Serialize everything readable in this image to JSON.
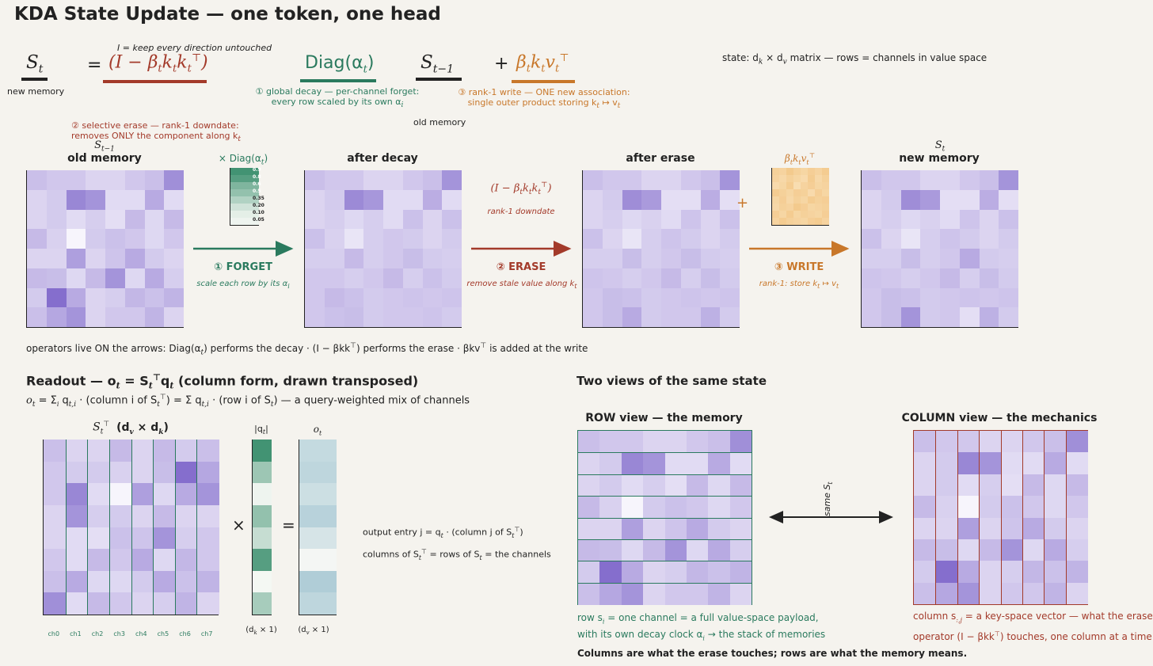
{
  "title": "KDA State Update — one token, one head",
  "equation": {
    "st": "S",
    "st_sub": "t",
    "st_note": "new memory",
    "equals": "=",
    "erase_term": "(I − β",
    "erase_term_tail": "k",
    "identity_note": "I = keep every direction untouched",
    "erase_note_1": "② selective erase — rank-1 downdate:",
    "erase_note_2": "removes ONLY the component along k",
    "diag_term": "Diag(α",
    "diag_note_1": "① global decay — per-channel forget:",
    "diag_note_2": "every row scaled by its own α",
    "sprev": "S",
    "sprev_sub": "t−1",
    "sprev_note": "old memory",
    "plus": "+",
    "write_term": "β",
    "write_note_1": "③ rank-1 write — ONE new association:",
    "write_note_2": "single outer product storing k",
    "state_note": "state: d",
    "state_note_tail": " matrix — rows = channels in value space"
  },
  "panels": {
    "old": {
      "top": "S",
      "top_sub": "t−1",
      "label": "old memory"
    },
    "decay": {
      "label": "after decay"
    },
    "erase": {
      "label": "after erase"
    },
    "new": {
      "top": "S",
      "top_sub": "t",
      "label": "new memory"
    }
  },
  "diag_box": {
    "label": "× Diag(α",
    "values": [
      "0.9",
      "0.8",
      "0.6",
      "0.5",
      "0.35",
      "0.20",
      "0.10",
      "0.05"
    ]
  },
  "arrows": {
    "forget": {
      "label": "① FORGET",
      "note": "scale each row by its α"
    },
    "erase": {
      "formula": "(I − β",
      "formula_sub": "rank-1 downdate",
      "label": "② ERASE",
      "note": "remove stale value along k"
    },
    "write": {
      "label": "③ WRITE",
      "note": "rank-1: store k"
    }
  },
  "write_box_label": "β",
  "plus_sign": "+",
  "operators_line_1": "operators live ON the arrows:  Diag(α",
  "operators_line_2": ") performs the decay · (I − βkk",
  "operators_line_3": ") performs the erase · βkv",
  "operators_line_4": "  is added at the write",
  "readout": {
    "title_1": "Readout — o",
    "title_2": " (column form, drawn transposed)",
    "formula": "= Σ q",
    "formula_tail": " · (row i of S",
    "formula_end": ")  — a query-weighted mix of channels",
    "st_label": "(d",
    "st_label_tail": ")",
    "q_label": "|q",
    "o_label": "o",
    "times": "×",
    "eq": "=",
    "q_dims": "(d",
    "o_dims": "(d",
    "ch_labels": [
      "ch0",
      "ch1",
      "ch2",
      "ch3",
      "ch4",
      "ch5",
      "ch6",
      "ch7"
    ],
    "note_1": "output entry j = q",
    "note_1_tail": " ·  (column j of S",
    "note_2": "columns of S",
    "note_2_tail": " = rows of S",
    "note_2_end": " = the channels"
  },
  "views": {
    "title": "Two views of the same state",
    "row_title": "ROW view — the memory",
    "col_title": "COLUMN view — the mechanics",
    "same": "same S",
    "row_note_1": "row s",
    "row_note_1_tail": " = one channel = a full value-space payload,",
    "row_note_2": "with its own decay clock α",
    "row_note_2_tail": "  →  the stack of memories",
    "col_note_1": "column s",
    "col_note_1_tail": " = a key-space vector — what the erase",
    "col_note_2": "operator (I − βkk",
    "col_note_2_tail": ") touches, one column at a time",
    "footer": "Columns are what the erase touches;  rows are what the memory means."
  },
  "heat": {
    "old": [
      [
        0.35,
        0.3,
        0.3,
        0.22,
        0.22,
        0.3,
        0.35,
        0.65
      ],
      [
        0.22,
        0.28,
        0.7,
        0.62,
        0.18,
        0.18,
        0.48,
        0.18
      ],
      [
        0.22,
        0.28,
        0.18,
        0.26,
        0.16,
        0.38,
        0.2,
        0.38
      ],
      [
        0.38,
        0.24,
        0.02,
        0.28,
        0.34,
        0.3,
        0.2,
        0.3
      ],
      [
        0.22,
        0.22,
        0.55,
        0.22,
        0.32,
        0.48,
        0.28,
        0.22
      ],
      [
        0.38,
        0.36,
        0.2,
        0.38,
        0.62,
        0.2,
        0.48,
        0.26
      ],
      [
        0.28,
        0.85,
        0.48,
        0.22,
        0.26,
        0.4,
        0.34,
        0.42
      ],
      [
        0.35,
        0.5,
        0.62,
        0.22,
        0.3,
        0.3,
        0.42,
        0.22
      ]
    ],
    "decay": [
      [
        0.35,
        0.3,
        0.3,
        0.22,
        0.22,
        0.3,
        0.35,
        0.62
      ],
      [
        0.22,
        0.28,
        0.68,
        0.6,
        0.18,
        0.18,
        0.46,
        0.18
      ],
      [
        0.22,
        0.26,
        0.2,
        0.26,
        0.18,
        0.34,
        0.22,
        0.34
      ],
      [
        0.34,
        0.24,
        0.12,
        0.26,
        0.3,
        0.28,
        0.22,
        0.28
      ],
      [
        0.26,
        0.26,
        0.38,
        0.26,
        0.3,
        0.36,
        0.28,
        0.26
      ],
      [
        0.3,
        0.3,
        0.26,
        0.3,
        0.38,
        0.26,
        0.34,
        0.28
      ],
      [
        0.3,
        0.38,
        0.34,
        0.28,
        0.3,
        0.32,
        0.3,
        0.32
      ],
      [
        0.3,
        0.34,
        0.36,
        0.28,
        0.3,
        0.3,
        0.32,
        0.28
      ]
    ],
    "erase": [
      [
        0.35,
        0.3,
        0.3,
        0.22,
        0.22,
        0.3,
        0.35,
        0.62
      ],
      [
        0.22,
        0.28,
        0.66,
        0.58,
        0.16,
        0.16,
        0.46,
        0.16
      ],
      [
        0.22,
        0.26,
        0.2,
        0.24,
        0.18,
        0.32,
        0.22,
        0.34
      ],
      [
        0.34,
        0.22,
        0.12,
        0.26,
        0.32,
        0.28,
        0.22,
        0.28
      ],
      [
        0.26,
        0.26,
        0.36,
        0.26,
        0.3,
        0.36,
        0.28,
        0.26
      ],
      [
        0.32,
        0.3,
        0.26,
        0.3,
        0.38,
        0.26,
        0.36,
        0.28
      ],
      [
        0.3,
        0.36,
        0.34,
        0.28,
        0.3,
        0.32,
        0.3,
        0.32
      ],
      [
        0.3,
        0.36,
        0.48,
        0.28,
        0.3,
        0.3,
        0.44,
        0.28
      ]
    ],
    "new": [
      [
        0.35,
        0.3,
        0.3,
        0.22,
        0.22,
        0.3,
        0.35,
        0.62
      ],
      [
        0.22,
        0.28,
        0.66,
        0.58,
        0.16,
        0.16,
        0.46,
        0.16
      ],
      [
        0.22,
        0.26,
        0.2,
        0.24,
        0.18,
        0.32,
        0.22,
        0.34
      ],
      [
        0.34,
        0.22,
        0.12,
        0.26,
        0.32,
        0.28,
        0.22,
        0.28
      ],
      [
        0.26,
        0.26,
        0.36,
        0.26,
        0.3,
        0.48,
        0.28,
        0.26
      ],
      [
        0.32,
        0.3,
        0.26,
        0.3,
        0.38,
        0.26,
        0.36,
        0.28
      ],
      [
        0.3,
        0.36,
        0.34,
        0.28,
        0.3,
        0.32,
        0.3,
        0.32
      ],
      [
        0.3,
        0.36,
        0.62,
        0.28,
        0.3,
        0.16,
        0.44,
        0.28
      ]
    ],
    "write": [
      [
        0.4,
        0.35,
        0.55,
        0.4,
        0.3,
        0.45,
        0.35,
        0.5
      ],
      [
        0.35,
        0.25,
        0.4,
        0.3,
        0.2,
        0.5,
        0.25,
        0.4
      ],
      [
        0.2,
        0.3,
        0.5,
        0.15,
        0.35,
        0.45,
        0.3,
        0.35
      ],
      [
        0.5,
        0.4,
        0.3,
        0.45,
        0.4,
        0.2,
        0.45,
        0.3
      ],
      [
        0.3,
        0.45,
        0.25,
        0.4,
        0.3,
        0.5,
        0.4,
        0.45
      ],
      [
        0.25,
        0.4,
        0.35,
        0.55,
        0.45,
        0.3,
        0.35,
        0.4
      ],
      [
        0.45,
        0.3,
        0.5,
        0.3,
        0.4,
        0.35,
        0.3,
        0.45
      ],
      [
        0.35,
        0.5,
        0.4,
        0.35,
        0.3,
        0.45,
        0.5,
        0.35
      ]
    ],
    "q": [
      0.9,
      0.45,
      0.05,
      0.5,
      0.25,
      0.8,
      0.02,
      0.4
    ],
    "o": [
      0.45,
      0.5,
      0.38,
      0.55,
      0.3,
      0.05,
      0.62,
      0.5
    ]
  },
  "colors": {
    "green": "#2a7a5e",
    "red": "#a33a2a",
    "orange": "#c8772a",
    "ink": "#222222"
  }
}
